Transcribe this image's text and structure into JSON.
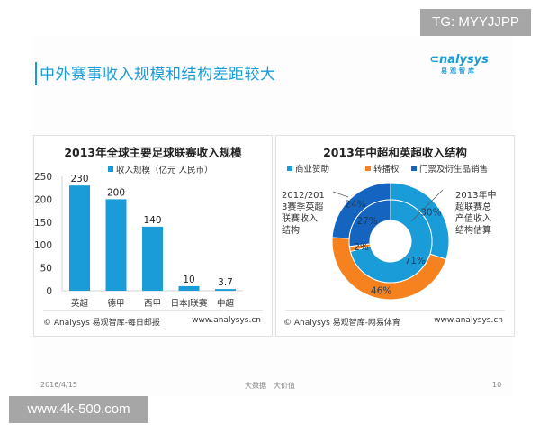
{
  "watermarks": {
    "top_right": "TG: MYYJJPP",
    "bottom_left": "www.4k-500.com"
  },
  "header": {
    "title": "中外赛事收入规模和结构差距较大",
    "logo_en": "nalysys",
    "logo_cn": "易观智库"
  },
  "colors": {
    "accent": "#1a9cd8",
    "commercial": "#1a9cd8",
    "broadcast": "#f5821f",
    "ticket": "#1565c0"
  },
  "chart_data": [
    {
      "type": "bar",
      "title": "2013年全球主要足球联赛收入规模",
      "legend": "收入规模（亿元 人民币）",
      "categories": [
        "英超",
        "德甲",
        "西甲",
        "日本J联赛",
        "中超"
      ],
      "values": [
        230,
        200,
        140,
        10,
        3.7
      ],
      "value_labels": [
        "230",
        "200",
        "140",
        "10",
        "3.7"
      ],
      "yticks": [
        "0",
        "50",
        "100",
        "150",
        "200",
        "250"
      ],
      "ylim": [
        0,
        250
      ],
      "xlabel": "",
      "ylabel": "",
      "source": "© Analysys 易观智库-每日邮报",
      "site": "www.analysys.cn"
    },
    {
      "type": "pie",
      "title": "2013年中超和英超收入结构",
      "legend": [
        "商业赞助",
        "转播权",
        "门票及衍生品销售"
      ],
      "series": [
        {
          "name": "2012/2013赛季英超联赛收入结构",
          "ring": "outer",
          "values": [
            30,
            46,
            24
          ],
          "labels": [
            "30%",
            "46%",
            "24%"
          ]
        },
        {
          "name": "2013年中超联赛总产值收入结构估算",
          "ring": "inner",
          "values": [
            71,
            2,
            27
          ],
          "labels": [
            "71%",
            "2%",
            "27%"
          ]
        }
      ],
      "annotations": {
        "left": [
          "2012/201",
          "3赛季英超",
          "联赛收入",
          "结构"
        ],
        "right": [
          "2013年中",
          "超联赛总",
          "产值收入",
          "结构估算"
        ]
      },
      "source": "© Analysys 易观智库-网易体育",
      "site": "www.analysys.cn"
    }
  ],
  "footer": {
    "date": "2016/4/15",
    "slogan": "大数据　大价值",
    "page": "10"
  }
}
